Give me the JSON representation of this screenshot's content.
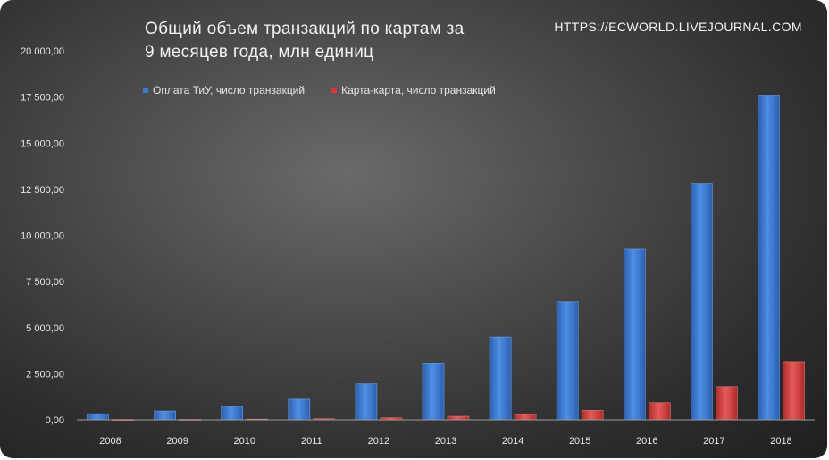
{
  "header": {
    "title_line1": "Общий объем транзакций по картам за",
    "title_line2": "9 месяцев года,  млн единиц",
    "watermark": "HTTPS://ECWORLD.LIVEJOURNAL.COM"
  },
  "chart_data": {
    "type": "bar",
    "categories": [
      "2008",
      "2009",
      "2010",
      "2011",
      "2012",
      "2013",
      "2014",
      "2015",
      "2016",
      "2017",
      "2018"
    ],
    "series": [
      {
        "name": "Оплата ТиУ, число транзакций",
        "color": "#3a78d2",
        "values": [
          330,
          480,
          730,
          1120,
          1950,
          3080,
          4500,
          6400,
          9250,
          12800,
          17600
        ]
      },
      {
        "name": "Карта-карта, число транзакций",
        "color": "#d23a3a",
        "values": [
          20,
          25,
          40,
          60,
          110,
          190,
          290,
          510,
          930,
          1800,
          3150
        ]
      }
    ],
    "y_ticks": [
      "0,00",
      "2 500,00",
      "5 000,00",
      "7 500,00",
      "10 000,00",
      "12 500,00",
      "15 000,00",
      "17 500,00",
      "20 000,00"
    ],
    "ylim": [
      0,
      20000
    ],
    "grid": false,
    "legend_position": "top-left"
  }
}
